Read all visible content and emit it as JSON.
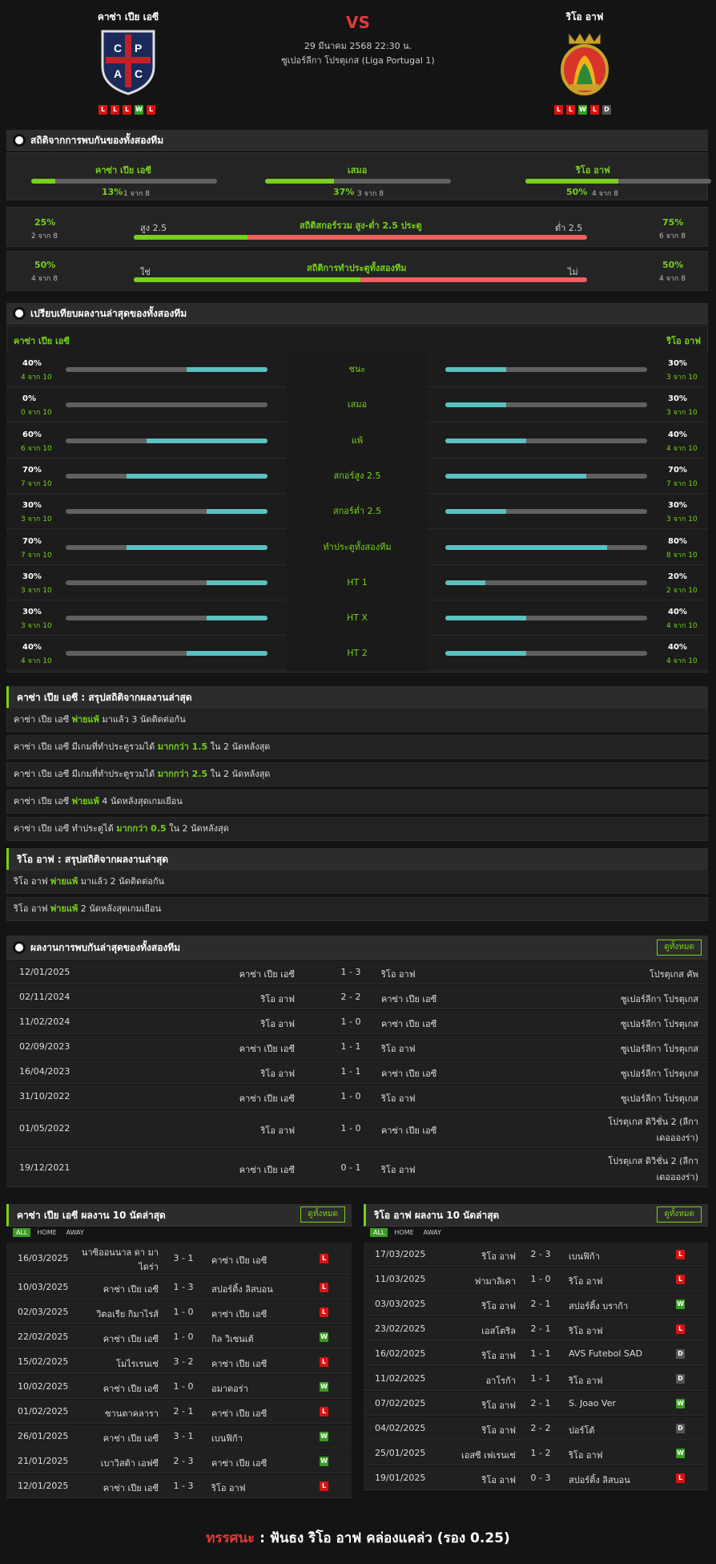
{
  "header": {
    "home": "คาซ่า เปีย เอซี",
    "away": "ริโอ อาฟ",
    "vs": "VS",
    "date": "29 มีนาคม 2568 22:30 น.",
    "league": "ซูเปอร์ลีกา โปรตุเกส (Liga Portugal 1)",
    "home_form": [
      "L",
      "L",
      "L",
      "W",
      "L"
    ],
    "away_form": [
      "L",
      "L",
      "W",
      "L",
      "D"
    ],
    "home_logo_letters": "CPAC",
    "away_logo_letters": "RIO AVE"
  },
  "h2h_stats": {
    "title": "สถิติจากการพบกันของทั้งสองทีม",
    "home": {
      "label": "คาซ่า เปีย เอซี",
      "pct": "13%",
      "count": "1 จาก 8",
      "value": 0.13
    },
    "draw": {
      "label": "เสมอ",
      "pct": "37%",
      "count": "3 จาก 8",
      "value": 0.37
    },
    "away": {
      "label": "ริโอ อาฟ",
      "pct": "50%",
      "count": "4 จาก 8",
      "value": 0.5
    },
    "ou": {
      "title": "สถิติสกอร์รวม สูง-ต่ำ 2.5 ประตู",
      "over_label": "สูง 2.5",
      "under_label": "ต่ำ 2.5",
      "left_pct": "25%",
      "left_count": "2 จาก 8",
      "right_pct": "75%",
      "right_count": "6 จาก 8",
      "value": 0.25
    },
    "btts": {
      "title": "สถิติการทำประตูทั้งสองทีม",
      "yes_label": "ใช่",
      "no_label": "ไม่",
      "left_pct": "50%",
      "left_count": "4 จาก 8",
      "right_pct": "50%",
      "right_count": "4 จาก 8",
      "value": 0.5
    }
  },
  "compare": {
    "title": "เปรียบเทียบผลงานล่าสุดของทั้งสองทีม",
    "home": "คาซ่า เปีย เอซี",
    "away": "ริโอ อาฟ",
    "rows": [
      {
        "label": "ชนะ",
        "hp": "40%",
        "hc": "4 จาก 10",
        "hv": 0.4,
        "ap": "30%",
        "ac": "3 จาก 10",
        "av": 0.3
      },
      {
        "label": "เสมอ",
        "hp": "0%",
        "hc": "0 จาก 10",
        "hv": 0,
        "ap": "30%",
        "ac": "3 จาก 10",
        "av": 0.3
      },
      {
        "label": "แพ้",
        "hp": "60%",
        "hc": "6 จาก 10",
        "hv": 0.6,
        "ap": "40%",
        "ac": "4 จาก 10",
        "av": 0.4
      },
      {
        "label": "สกอร์สูง 2.5",
        "hp": "70%",
        "hc": "7 จาก 10",
        "hv": 0.7,
        "ap": "70%",
        "ac": "7 จาก 10",
        "av": 0.7
      },
      {
        "label": "สกอร์ต่ำ 2.5",
        "hp": "30%",
        "hc": "3 จาก 10",
        "hv": 0.3,
        "ap": "30%",
        "ac": "3 จาก 10",
        "av": 0.3
      },
      {
        "label": "ทำประตูทั้งสองทีม",
        "hp": "70%",
        "hc": "7 จาก 10",
        "hv": 0.7,
        "ap": "80%",
        "ac": "8 จาก 10",
        "av": 0.8
      },
      {
        "label": "HT 1",
        "hp": "30%",
        "hc": "3 จาก 10",
        "hv": 0.3,
        "ap": "20%",
        "ac": "2 จาก 10",
        "av": 0.2
      },
      {
        "label": "HT X",
        "hp": "30%",
        "hc": "3 จาก 10",
        "hv": 0.3,
        "ap": "40%",
        "ac": "4 จาก 10",
        "av": 0.4
      },
      {
        "label": "HT 2",
        "hp": "40%",
        "hc": "4 จาก 10",
        "hv": 0.4,
        "ap": "40%",
        "ac": "4 จาก 10",
        "av": 0.4
      }
    ]
  },
  "home_summary": {
    "title": "คาซ่า เปีย เอซี : สรุปสถิติจากผลงานล่าสุด",
    "rows": [
      [
        "คาซ่า เปีย เอซี ",
        "พ่ายแพ้",
        " มาแล้ว 3 นัดติดต่อกัน"
      ],
      [
        "คาซ่า เปีย เอซี มีเกมที่ทำประตูรวมได้ ",
        "มากกว่า 1.5",
        " ใน 2 นัดหลังสุด"
      ],
      [
        "คาซ่า เปีย เอซี มีเกมที่ทำประตูรวมได้ ",
        "มากกว่า 2.5",
        " ใน 2 นัดหลังสุด"
      ],
      [
        "คาซ่า เปีย เอซี ",
        "พ่ายแพ้",
        " 4 นัดหลังสุดเกมเยือน"
      ],
      [
        "คาซ่า เปีย เอซี ทำประตูได้ ",
        "มากกว่า 0.5",
        " ใน 2 นัดหลังสุด"
      ]
    ]
  },
  "away_summary": {
    "title": "ริโอ อาฟ : สรุปสถิติจากผลงานล่าสุด",
    "rows": [
      [
        "ริโอ อาฟ ",
        "พ่ายแพ้",
        " มาแล้ว 2 นัดติดต่อกัน"
      ],
      [
        "ริโอ อาฟ ",
        "พ่ายแพ้",
        " 2 นัดหลังสุดเกมเยือน"
      ]
    ]
  },
  "h2h_matches": {
    "title": "ผลงานการพบกันล่าสุดของทั้งสองทีม",
    "see_all": "ดูทั้งหมด",
    "rows": [
      {
        "date": "12/01/2025",
        "home": "คาซ่า เปีย เอซี",
        "score": "1 - 3",
        "away": "ริโอ อาฟ",
        "comp": "โปรตุเกส คัพ"
      },
      {
        "date": "02/11/2024",
        "home": "ริโอ อาฟ",
        "score": "2 - 2",
        "away": "คาซ่า เปีย เอซี",
        "comp": "ซูเปอร์ลีกา โปรตุเกส"
      },
      {
        "date": "11/02/2024",
        "home": "ริโอ อาฟ",
        "score": "1 - 0",
        "away": "คาซ่า เปีย เอซี",
        "comp": "ซูเปอร์ลีกา โปรตุเกส"
      },
      {
        "date": "02/09/2023",
        "home": "คาซ่า เปีย เอซี",
        "score": "1 - 1",
        "away": "ริโอ อาฟ",
        "comp": "ซูเปอร์ลีกา โปรตุเกส"
      },
      {
        "date": "16/04/2023",
        "home": "ริโอ อาฟ",
        "score": "1 - 1",
        "away": "คาซ่า เปีย เอซี",
        "comp": "ซูเปอร์ลีกา โปรตุเกส"
      },
      {
        "date": "31/10/2022",
        "home": "คาซ่า เปีย เอซี",
        "score": "1 - 0",
        "away": "ริโอ อาฟ",
        "comp": "ซูเปอร์ลีกา โปรตุเกส"
      },
      {
        "date": "01/05/2022",
        "home": "ริโอ อาฟ",
        "score": "1 - 0",
        "away": "คาซ่า เปีย เอซี",
        "comp": "โปรตุเกส ดิวิชั่น 2 (ลีกา",
        "comp2": "เดออองร่า)"
      },
      {
        "date": "19/12/2021",
        "home": "คาซ่า เปีย เอซี",
        "score": "0 - 1",
        "away": "ริโอ อาฟ",
        "comp": "โปรตุเกส ดิวิชั่น 2 (ลีกา",
        "comp2": "เดออองร่า)"
      }
    ]
  },
  "home_last10": {
    "title": "คาซ่า เปีย เอซี ผลงาน 10 นัดล่าสุด",
    "see_all": "ดูทั้งหมด",
    "tabs": [
      "ALL",
      "HOME",
      "AWAY"
    ],
    "rows": [
      {
        "date": "16/03/2025",
        "home": "นาซิออนนาล ดา มา",
        "home2": "ไดร่า",
        "score": "3 - 1",
        "away": "คาซ่า เปีย เอซี",
        "res": "L"
      },
      {
        "date": "10/03/2025",
        "home": "คาซ่า เปีย เอซี",
        "score": "1 - 3",
        "away": "สปอร์ติ้ง ลิสบอน",
        "res": "L"
      },
      {
        "date": "02/03/2025",
        "home": "วิตอเรีย กิมาไรส์",
        "score": "1 - 0",
        "away": "คาซ่า เปีย เอซี",
        "res": "L"
      },
      {
        "date": "22/02/2025",
        "home": "คาซ่า เปีย เอซี",
        "score": "1 - 0",
        "away": "กิล วิเซนเต้",
        "res": "W"
      },
      {
        "date": "15/02/2025",
        "home": "โมไรเรนเซ่",
        "score": "3 - 2",
        "away": "คาซ่า เปีย เอซี",
        "res": "L"
      },
      {
        "date": "10/02/2025",
        "home": "คาซ่า เปีย เอซี",
        "score": "1 - 0",
        "away": "อมาดอร่า",
        "res": "W"
      },
      {
        "date": "01/02/2025",
        "home": "ซานตาคลารา",
        "score": "2 - 1",
        "away": "คาซ่า เปีย เอซี",
        "res": "L"
      },
      {
        "date": "26/01/2025",
        "home": "คาซ่า เปีย เอซี",
        "score": "3 - 1",
        "away": "เบนฟิก้า",
        "res": "W"
      },
      {
        "date": "21/01/2025",
        "home": "เบาวิสต้า เอฟซี",
        "score": "2 - 3",
        "away": "คาซ่า เปีย เอซี",
        "res": "W"
      },
      {
        "date": "12/01/2025",
        "home": "คาซ่า เปีย เอซี",
        "score": "1 - 3",
        "away": "ริโอ อาฟ",
        "res": "L"
      }
    ]
  },
  "away_last10": {
    "title": "ริโอ อาฟ ผลงาน 10 นัดล่าสุด",
    "see_all": "ดูทั้งหมด",
    "tabs": [
      "ALL",
      "HOME",
      "AWAY"
    ],
    "rows": [
      {
        "date": "17/03/2025",
        "home": "ริโอ อาฟ",
        "score": "2 - 3",
        "away": "เบนฟิก้า",
        "res": "L"
      },
      {
        "date": "11/03/2025",
        "home": "ฟามาลิเคา",
        "score": "1 - 0",
        "away": "ริโอ อาฟ",
        "res": "L"
      },
      {
        "date": "03/03/2025",
        "home": "ริโอ อาฟ",
        "score": "2 - 1",
        "away": "สปอร์ติ้ง บราก้า",
        "res": "W"
      },
      {
        "date": "23/02/2025",
        "home": "เอสโตริล",
        "score": "2 - 1",
        "away": "ริโอ อาฟ",
        "res": "L"
      },
      {
        "date": "16/02/2025",
        "home": "ริโอ อาฟ",
        "score": "1 - 1",
        "away": "AVS Futebol SAD",
        "res": "D"
      },
      {
        "date": "11/02/2025",
        "home": "อาโรก้า",
        "score": "1 - 1",
        "away": "ริโอ อาฟ",
        "res": "D"
      },
      {
        "date": "07/02/2025",
        "home": "ริโอ อาฟ",
        "score": "2 - 1",
        "away": "S. Joao Ver",
        "res": "W"
      },
      {
        "date": "04/02/2025",
        "home": "ริโอ อาฟ",
        "score": "2 - 2",
        "away": "ปอร์โต้",
        "res": "D"
      },
      {
        "date": "25/01/2025",
        "home": "เอสซี เฟเรนเซ่",
        "score": "1 - 2",
        "away": "ริโอ อาฟ",
        "res": "W"
      },
      {
        "date": "19/01/2025",
        "home": "ริโอ อาฟ",
        "score": "0 - 3",
        "away": "สปอร์ติ้ง ลิสบอน",
        "res": "L"
      }
    ]
  },
  "prediction": {
    "label": "ทรรศนะ",
    "colon": " : ",
    "text": "ฟันธง ริโอ อาฟ คล่องแคล่ว (รอง 0.25)"
  },
  "colors": {
    "accent": "#76d11b",
    "loss": "#dd1111",
    "win": "#3a9d23",
    "teal": "#5bc0c0",
    "red_bar": "#f06060"
  }
}
